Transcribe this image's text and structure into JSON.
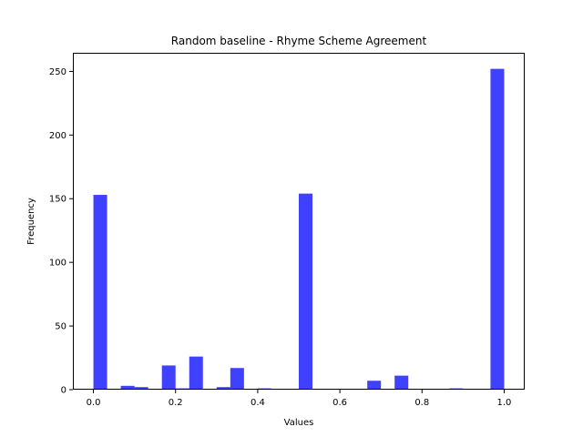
{
  "chart_data": {
    "type": "bar",
    "title": "Random baseline - Rhyme Scheme Agreement",
    "xlabel": "Values",
    "ylabel": "Frequency",
    "xlim": [
      -0.05,
      1.05
    ],
    "ylim": [
      0,
      264.6
    ],
    "xticks": [
      0.0,
      0.2,
      0.4,
      0.6,
      0.8,
      1.0
    ],
    "xtick_labels": [
      "0.0",
      "0.2",
      "0.4",
      "0.6",
      "0.8",
      "1.0"
    ],
    "yticks": [
      0,
      50,
      100,
      150,
      200,
      250
    ],
    "ytick_labels": [
      "0",
      "50",
      "100",
      "150",
      "200",
      "250"
    ],
    "bin_width": 0.0333,
    "bar_color": "#0000ff",
    "bar_opacity": 0.75,
    "bins": [
      {
        "x": 0.0,
        "value": 153
      },
      {
        "x": 0.0333,
        "value": 0
      },
      {
        "x": 0.0667,
        "value": 3
      },
      {
        "x": 0.1,
        "value": 2
      },
      {
        "x": 0.1333,
        "value": 0
      },
      {
        "x": 0.1667,
        "value": 19
      },
      {
        "x": 0.2,
        "value": 1
      },
      {
        "x": 0.2333,
        "value": 26
      },
      {
        "x": 0.2667,
        "value": 0
      },
      {
        "x": 0.3,
        "value": 2
      },
      {
        "x": 0.3333,
        "value": 17
      },
      {
        "x": 0.3667,
        "value": 0
      },
      {
        "x": 0.4,
        "value": 1
      },
      {
        "x": 0.4333,
        "value": 0
      },
      {
        "x": 0.4667,
        "value": 0
      },
      {
        "x": 0.5,
        "value": 154
      },
      {
        "x": 0.5333,
        "value": 0
      },
      {
        "x": 0.5667,
        "value": 0
      },
      {
        "x": 0.6,
        "value": 0
      },
      {
        "x": 0.6333,
        "value": 0
      },
      {
        "x": 0.6667,
        "value": 7
      },
      {
        "x": 0.7,
        "value": 0
      },
      {
        "x": 0.7333,
        "value": 11
      },
      {
        "x": 0.7667,
        "value": 0
      },
      {
        "x": 0.8,
        "value": 0
      },
      {
        "x": 0.8333,
        "value": 0
      },
      {
        "x": 0.8667,
        "value": 1
      },
      {
        "x": 0.9,
        "value": 0
      },
      {
        "x": 0.9333,
        "value": 0
      },
      {
        "x": 0.9667,
        "value": 252
      }
    ]
  }
}
